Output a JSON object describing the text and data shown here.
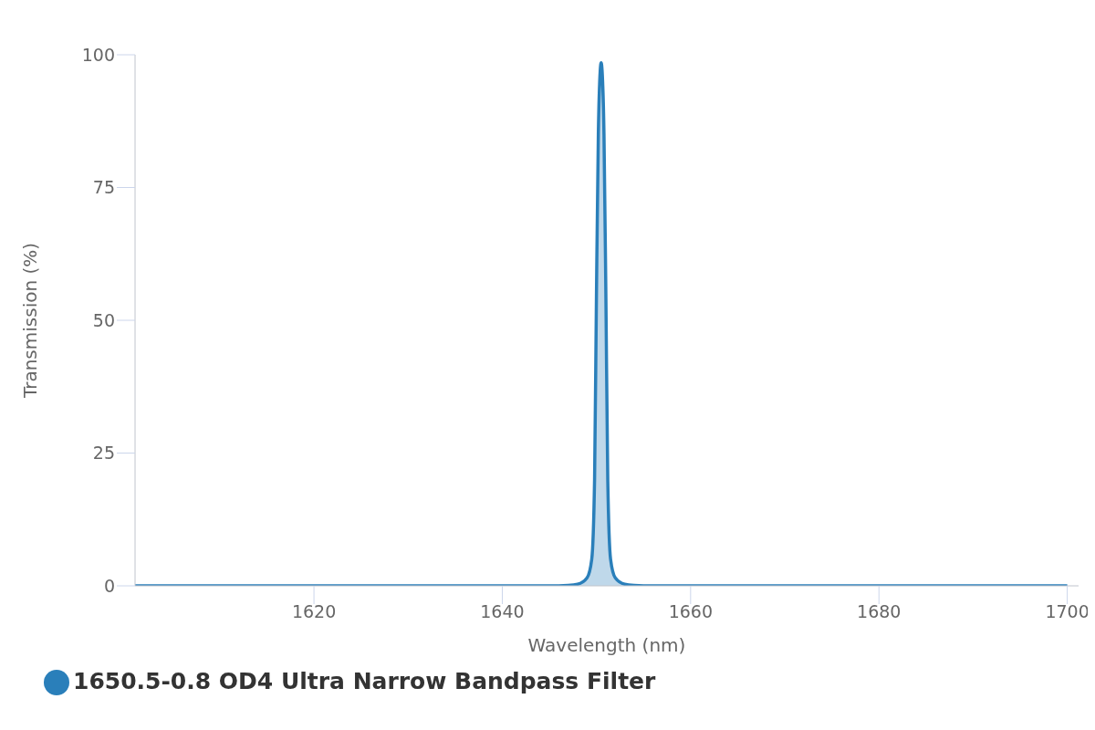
{
  "chart_data": {
    "type": "area",
    "xlabel": "Wavelength (nm)",
    "ylabel": "Transmission (%)",
    "x": [
      1601,
      1645,
      1647,
      1648,
      1649,
      1649.5,
      1649.8,
      1650,
      1650.2,
      1650.4,
      1650.5,
      1650.6,
      1650.8,
      1651,
      1651.2,
      1651.5,
      1652,
      1653,
      1654,
      1656,
      1700
    ],
    "series": [
      {
        "name": "1650.5-0.8 OD4 Ultra Narrow Bandpass Filter",
        "color": "#2a7fba",
        "values": [
          0,
          0,
          0.1,
          0.3,
          1.5,
          5,
          20,
          55,
          85,
          97,
          98.5,
          97,
          85,
          55,
          20,
          5,
          1.5,
          0.3,
          0.1,
          0,
          0
        ]
      }
    ],
    "xlim": [
      1601,
      1701.2
    ],
    "xticks": [
      1620,
      1640,
      1660,
      1680,
      1700
    ],
    "ylim": [
      0,
      100
    ],
    "yticks": [
      0,
      25,
      50,
      75,
      100
    ],
    "grid": false,
    "legend": "bottom left"
  }
}
